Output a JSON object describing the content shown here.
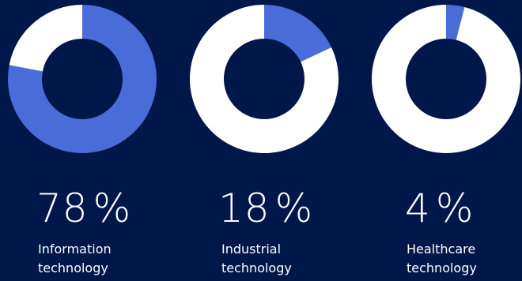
{
  "chart_data": [
    {
      "type": "pie",
      "labels": [
        "Information technology"
      ],
      "values": [
        78
      ],
      "value_text": "78",
      "unit": "%",
      "label_lines": [
        "Information",
        "technology"
      ],
      "colors": {
        "value": "#4a6cd8",
        "remainder": "#ffffff"
      }
    },
    {
      "type": "pie",
      "labels": [
        "Industrial technology"
      ],
      "values": [
        18
      ],
      "value_text": "18",
      "unit": "%",
      "label_lines": [
        "Industrial",
        "technology"
      ],
      "colors": {
        "value": "#4a6cd8",
        "remainder": "#ffffff"
      }
    },
    {
      "type": "pie",
      "labels": [
        "Healthcare technology"
      ],
      "values": [
        4
      ],
      "value_text": "4",
      "unit": "%",
      "label_lines": [
        "Healthcare",
        "technology"
      ],
      "colors": {
        "value": "#4a6cd8",
        "remainder": "#ffffff"
      }
    }
  ],
  "background_color": "#00174a"
}
